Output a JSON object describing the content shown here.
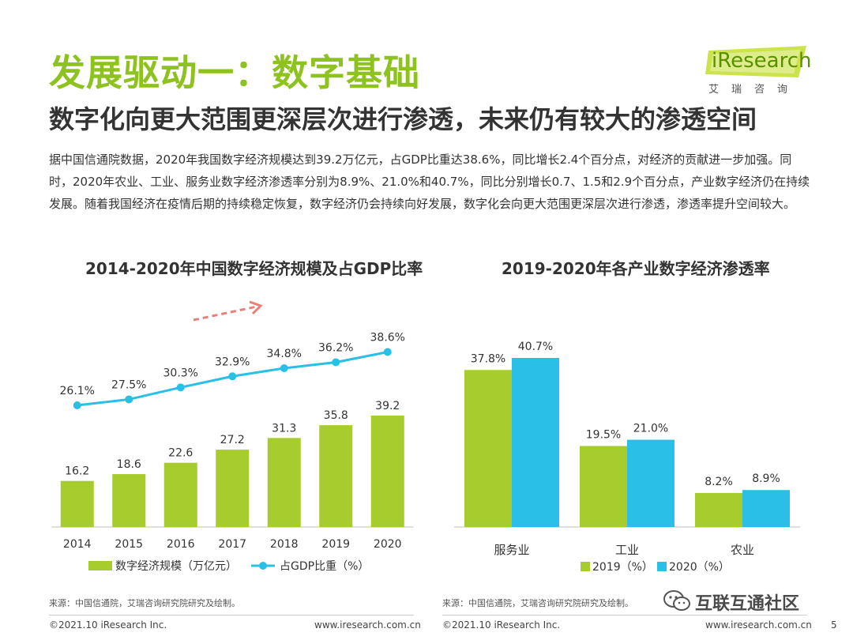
{
  "header": {
    "title": "发展驱动一：数字基础",
    "subtitle": "数字化向更大范围更深层次进行渗透，未来仍有较大的渗透空间"
  },
  "logo": {
    "brand": "iResearch",
    "cn": "艾瑞咨询",
    "color": "#8dc21f"
  },
  "paragraph": "据中国信通院数据，2020年我国数字经济规模达到39.2万亿元，占GDP比重达38.6%，同比增长2.4个百分点，对经济的贡献进一步加强。同时，2020年农业、工业、服务业数字经济渗透率分别为8.9%、21.0%和40.7%，同比分别增长0.7、1.5和2.9个百分点，产业数字经济仍在持续发展。随着我国经济在疫情后期的持续稳定恢复，数字经济仍会持续向好发展，数字化会向更大范围更深层次进行渗透，渗透率提升空间较大。",
  "chart_data": [
    {
      "type": "bar+line",
      "title": "2014-2020年中国数字经济规模及占GDP比率",
      "categories": [
        "2014",
        "2015",
        "2016",
        "2017",
        "2018",
        "2019",
        "2020"
      ],
      "series": [
        {
          "name": "数字经济规模（万亿元）",
          "type": "bar",
          "color": "#a7cc2e",
          "values": [
            16.2,
            18.6,
            22.6,
            27.2,
            31.3,
            35.8,
            39.2
          ],
          "labels": [
            "16.2",
            "18.6",
            "22.6",
            "27.2",
            "31.3",
            "35.8",
            "39.2"
          ]
        },
        {
          "name": "占GDP比重（%）",
          "type": "line",
          "color": "#29bfe6",
          "values": [
            26.1,
            27.5,
            30.3,
            32.9,
            34.8,
            36.2,
            38.6
          ],
          "labels": [
            "26.1%",
            "27.5%",
            "30.3%",
            "32.9%",
            "34.8%",
            "36.2%",
            "38.6%"
          ]
        }
      ],
      "ylim_bar": [
        0,
        60
      ],
      "ylim_line": [
        0,
        45
      ],
      "source": "来源：中国信通院，艾瑞咨询研究院研究及绘制。"
    },
    {
      "type": "bar",
      "title": "2019-2020年各产业数字经济渗透率",
      "categories": [
        "服务业",
        "工业",
        "农业"
      ],
      "series": [
        {
          "name": "2019（%）",
          "color": "#a7cc2e",
          "values": [
            37.8,
            19.5,
            8.2
          ],
          "labels": [
            "37.8%",
            "19.5%",
            "8.2%"
          ]
        },
        {
          "name": "2020（%）",
          "color": "#29bfe6",
          "values": [
            40.7,
            21.0,
            8.9
          ],
          "labels": [
            "40.7%",
            "21.0%",
            "8.9%"
          ]
        }
      ],
      "ylim": [
        0,
        45
      ],
      "source": "来源：中国信通院，艾瑞咨询研究院研究及绘制。"
    }
  ],
  "footer": {
    "left_copyright": "©2021.10 iResearch Inc.",
    "left_url": "www.iresearch.com.cn",
    "right_copyright": "©2021.10 iResearch Inc.",
    "right_url": "www.iresearch.com.cn",
    "page": "5"
  },
  "watermark": {
    "text": "互联互通社区"
  }
}
